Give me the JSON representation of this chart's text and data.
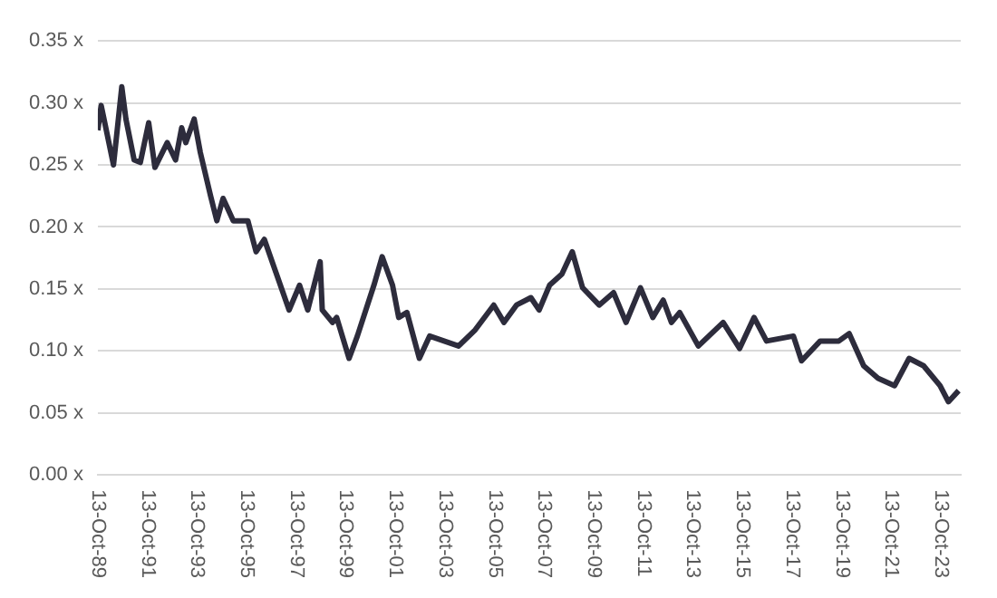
{
  "chart_data": {
    "type": "line",
    "x": [
      "1989-10-13",
      "1989-12",
      "1990-01",
      "1990-06",
      "1990-10",
      "1990-12",
      "1991-04",
      "1991-07",
      "1991-11",
      "1992-02",
      "1992-08",
      "1992-12",
      "1993-03",
      "1993-05",
      "1993-09",
      "1993-12",
      "1994-05",
      "1994-08",
      "1994-11",
      "1995-04",
      "1995-11",
      "1996-03",
      "1996-07",
      "1996-12",
      "1997-07",
      "1997-12",
      "1998-04",
      "1998-10",
      "1998-11",
      "1999-04",
      "1999-06",
      "1999-12",
      "2000-04",
      "2000-12",
      "2001-04",
      "2001-09",
      "2001-12",
      "2002-04",
      "2002-10",
      "2003-03",
      "2004-05",
      "2005-01",
      "2005-10",
      "2006-03",
      "2006-09",
      "2007-04",
      "2007-08",
      "2008-01",
      "2008-07",
      "2008-12",
      "2009-05",
      "2010-01",
      "2010-08",
      "2011-02",
      "2011-09",
      "2012-03",
      "2012-08",
      "2012-12",
      "2013-04",
      "2014-01",
      "2015-01",
      "2015-09",
      "2016-04",
      "2016-10",
      "2017-11",
      "2018-03",
      "2018-12",
      "2019-09",
      "2020-02",
      "2020-09",
      "2021-04",
      "2021-12",
      "2022-07",
      "2023-02",
      "2023-10",
      "2024-02",
      "2024-07"
    ],
    "series": [
      {
        "color": "#2d2c3c",
        "values": [
          0.278,
          0.298,
          0.29,
          0.25,
          0.313,
          0.287,
          0.254,
          0.252,
          0.284,
          0.248,
          0.268,
          0.254,
          0.28,
          0.268,
          0.287,
          0.26,
          0.225,
          0.205,
          0.223,
          0.205,
          0.205,
          0.18,
          0.19,
          0.166,
          0.133,
          0.153,
          0.133,
          0.172,
          0.133,
          0.123,
          0.127,
          0.094,
          0.112,
          0.153,
          0.176,
          0.153,
          0.127,
          0.131,
          0.094,
          0.112,
          0.104,
          0.117,
          0.137,
          0.123,
          0.137,
          0.143,
          0.133,
          0.153,
          0.162,
          0.18,
          0.151,
          0.137,
          0.147,
          0.123,
          0.151,
          0.127,
          0.141,
          0.123,
          0.131,
          0.104,
          0.123,
          0.102,
          0.127,
          0.108,
          0.112,
          0.092,
          0.108,
          0.108,
          0.114,
          0.088,
          0.078,
          0.072,
          0.094,
          0.088,
          0.072,
          0.059,
          0.068
        ]
      }
    ],
    "xlim": [
      "1989-10-13",
      "2024-08"
    ],
    "xticks": [
      {
        "value": "1989-10-13",
        "label": "13-Oct-89"
      },
      {
        "value": "1991-10-13",
        "label": "13-Oct-91"
      },
      {
        "value": "1993-10-13",
        "label": "13-Oct-93"
      },
      {
        "value": "1995-10-13",
        "label": "13-Oct-95"
      },
      {
        "value": "1997-10-13",
        "label": "13-Oct-97"
      },
      {
        "value": "1999-10-13",
        "label": "13-Oct-99"
      },
      {
        "value": "2001-10-13",
        "label": "13-Oct-01"
      },
      {
        "value": "2003-10-13",
        "label": "13-Oct-03"
      },
      {
        "value": "2005-10-13",
        "label": "13-Oct-05"
      },
      {
        "value": "2007-10-13",
        "label": "13-Oct-07"
      },
      {
        "value": "2009-10-13",
        "label": "13-Oct-09"
      },
      {
        "value": "2011-10-13",
        "label": "13-Oct-11"
      },
      {
        "value": "2013-10-13",
        "label": "13-Oct-13"
      },
      {
        "value": "2015-10-13",
        "label": "13-Oct-15"
      },
      {
        "value": "2017-10-13",
        "label": "13-Oct-17"
      },
      {
        "value": "2019-10-13",
        "label": "13-Oct-19"
      },
      {
        "value": "2021-10-13",
        "label": "13-Oct-21"
      },
      {
        "value": "2023-10-13",
        "label": "13-Oct-23"
      }
    ],
    "ylim": [
      0,
      0.35
    ],
    "yticks": [
      {
        "value": 0,
        "label": "0.00 x"
      },
      {
        "value": 0.05,
        "label": "0.05 x"
      },
      {
        "value": 0.1,
        "label": "0.10 x"
      },
      {
        "value": 0.15,
        "label": "0.15 x"
      },
      {
        "value": 0.2,
        "label": "0.20 x"
      },
      {
        "value": 0.25,
        "label": "0.25 x"
      },
      {
        "value": 0.3,
        "label": "0.30 x"
      },
      {
        "value": 0.35,
        "label": "0.35 x"
      }
    ],
    "grid": "y",
    "marker": "none",
    "line_style": "solid",
    "legend": false
  }
}
